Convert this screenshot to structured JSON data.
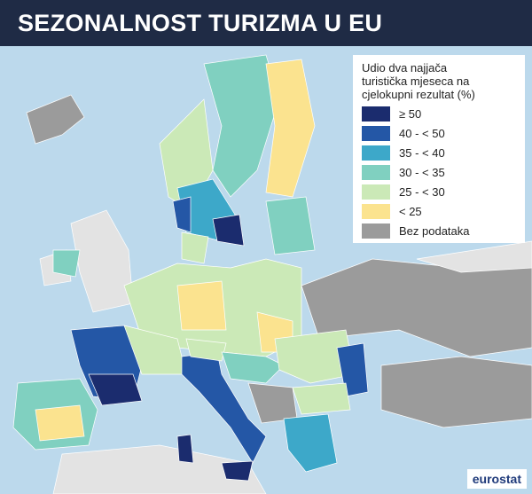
{
  "title": "SEZONALNOST TURIZMA U EU",
  "legend": {
    "title": [
      "Udio dva najjača",
      "turistička mjeseca na",
      "cjelokupni rezultat (%)"
    ],
    "items": [
      {
        "label": "≥ 50",
        "color": "#1b2c6e"
      },
      {
        "label": "40 - < 50",
        "color": "#2457a6"
      },
      {
        "label": "35 - < 40",
        "color": "#3da8c9"
      },
      {
        "label": "30 - < 35",
        "color": "#80d0c0"
      },
      {
        "label": "25 - < 30",
        "color": "#cbe9b7"
      },
      {
        "label": "< 25",
        "color": "#fbe38f"
      },
      {
        "label": "Bez podataka",
        "color": "#9b9b9b"
      }
    ]
  },
  "source": "eurostat"
}
